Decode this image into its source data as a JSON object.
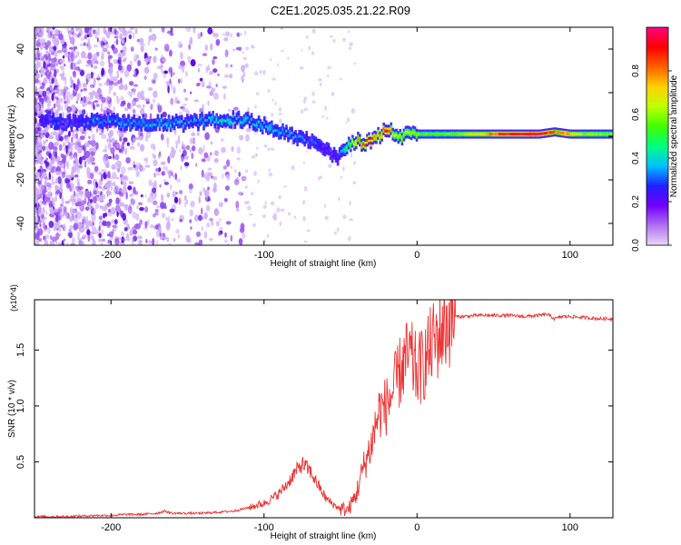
{
  "title": "C2E1.2025.035.21.22.R09",
  "chart_data": [
    {
      "type": "heatmap",
      "xlabel": "Height of straight line (km)",
      "ylabel": "Frequency (Hz)",
      "xlim": [
        -250,
        128
      ],
      "ylim": [
        -50,
        50
      ],
      "x_ticks": [
        -200,
        -100,
        0,
        100
      ],
      "y_ticks": [
        -40,
        -20,
        0,
        20,
        40
      ],
      "colorbar": {
        "label": "Normalized spectral amplitude",
        "range": [
          0,
          1
        ],
        "ticks": [
          0.0,
          0.2,
          0.4,
          0.6,
          0.8
        ],
        "colors": [
          "#e8d8f8",
          "#b070f0",
          "#7000ff",
          "#2020ff",
          "#00c0ff",
          "#00ff80",
          "#40ff00",
          "#c0ff00",
          "#ffd000",
          "#ff6000",
          "#ff0000",
          "#ff0080"
        ]
      },
      "ridge": {
        "x": [
          -245,
          -225,
          -200,
          -175,
          -150,
          -125,
          -110,
          -100,
          -90,
          -80,
          -70,
          -60,
          -52,
          -45,
          -40,
          -35,
          -30,
          -25,
          -20,
          -15,
          -10,
          -5,
          0,
          10,
          20,
          40,
          60,
          80,
          90,
          100,
          110,
          128
        ],
        "y": [
          8,
          6,
          7,
          6,
          6,
          8,
          7,
          5,
          2,
          0,
          -2,
          -6,
          -10,
          -4,
          -2,
          -3,
          -2,
          0,
          4,
          1,
          -1,
          2,
          1,
          1,
          1,
          1,
          1,
          1,
          2,
          1,
          1,
          1
        ],
        "amplitude": [
          0.25,
          0.3,
          0.35,
          0.35,
          0.35,
          0.4,
          0.4,
          0.4,
          0.35,
          0.35,
          0.3,
          0.25,
          0.25,
          0.5,
          0.7,
          0.85,
          0.9,
          0.7,
          0.9,
          0.7,
          0.6,
          0.7,
          0.6,
          0.55,
          0.55,
          0.7,
          0.9,
          0.95,
          0.8,
          0.75,
          0.6,
          0.6
        ]
      }
    },
    {
      "type": "line",
      "xlabel": "Height of straight line (km)",
      "ylabel": "SNR (10 * v/v)",
      "multiplier": "(x10^4)",
      "xlim": [
        -250,
        128
      ],
      "ylim": [
        0,
        1.95
      ],
      "x_ticks": [
        -200,
        -100,
        0,
        100
      ],
      "y_ticks": [
        0.5,
        1.0,
        1.5
      ],
      "color": "#ee3333",
      "series": [
        {
          "x": [
            -250,
            -230,
            -210,
            -200,
            -190,
            -180,
            -170,
            -165,
            -160,
            -150,
            -140,
            -130,
            -120,
            -110,
            -100,
            -95,
            -90,
            -85,
            -80,
            -75,
            -70,
            -65,
            -60,
            -55,
            -50,
            -45,
            -40,
            -35,
            -30,
            -25,
            -20,
            -15,
            -10,
            -5,
            0,
            5,
            10,
            15,
            20,
            25,
            30,
            40,
            50,
            60,
            70,
            80,
            85,
            90,
            95,
            100,
            110,
            120,
            128
          ],
          "y": [
            0.01,
            0.01,
            0.02,
            0.02,
            0.03,
            0.03,
            0.04,
            0.06,
            0.04,
            0.04,
            0.04,
            0.05,
            0.06,
            0.09,
            0.13,
            0.17,
            0.22,
            0.3,
            0.4,
            0.48,
            0.42,
            0.3,
            0.18,
            0.12,
            0.08,
            0.07,
            0.2,
            0.45,
            0.65,
            0.95,
            1.0,
            1.15,
            1.35,
            1.45,
            1.3,
            1.4,
            1.55,
            1.65,
            1.75,
            1.8,
            1.8,
            1.81,
            1.81,
            1.81,
            1.8,
            1.81,
            1.82,
            1.78,
            1.8,
            1.8,
            1.79,
            1.78,
            1.78
          ]
        }
      ]
    }
  ]
}
